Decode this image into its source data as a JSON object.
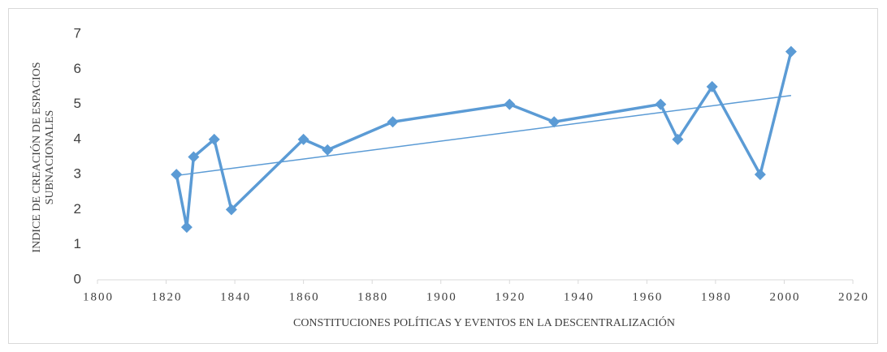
{
  "chart_data": {
    "type": "line",
    "xlabel": "CONSTITUCIONES POLÍTICAS Y EVENTOS EN LA DESCENTRALIZACIÓN",
    "ylabel": [
      "INDICE DE  CREACIÓN DE ESPACIOS",
      "SUBNACIONALES"
    ],
    "x": [
      1823,
      1826,
      1828,
      1834,
      1839,
      1860,
      1867,
      1886,
      1920,
      1933,
      1964,
      1969,
      1979,
      1993,
      2002
    ],
    "values": [
      3,
      1.5,
      3.5,
      4,
      2,
      4,
      3.7,
      4.5,
      5,
      4.5,
      5,
      4,
      5.5,
      3,
      6.5
    ],
    "color": "#5b9bd5",
    "trend": {
      "x": [
        1823,
        2002
      ],
      "values": [
        2.97,
        5.25
      ]
    },
    "xlim": [
      1800,
      2020
    ],
    "xticks": [
      1800,
      1820,
      1840,
      1860,
      1880,
      1900,
      1920,
      1940,
      1960,
      1980,
      2000,
      2020
    ],
    "ylim": [
      0,
      7
    ],
    "yticks": [
      0,
      1,
      2,
      3,
      4,
      5,
      6,
      7
    ],
    "grid": false
  }
}
